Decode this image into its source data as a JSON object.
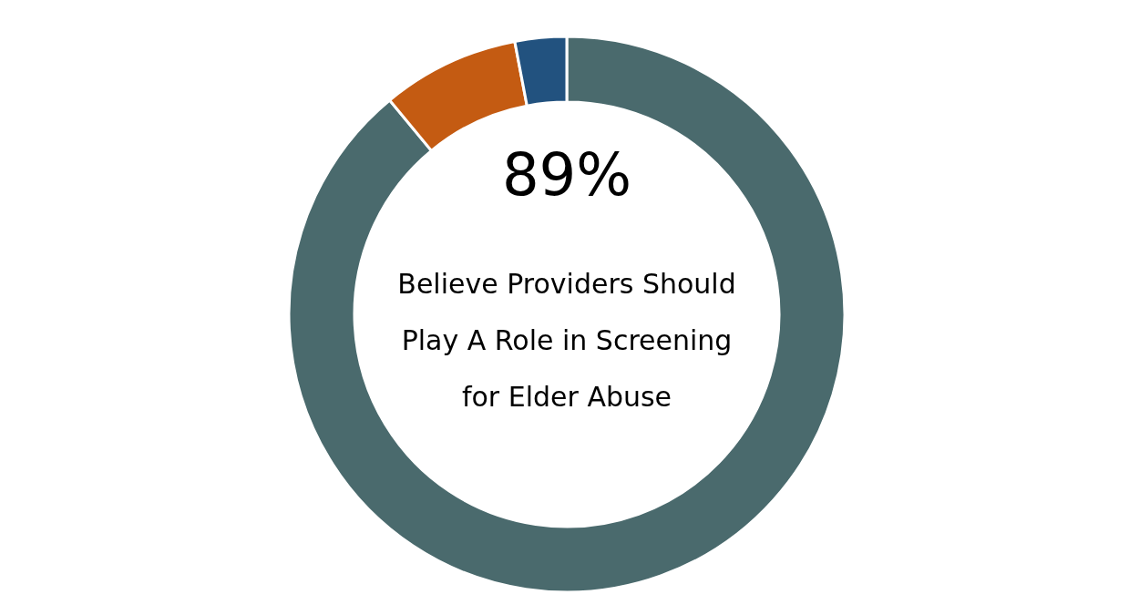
{
  "chart_data": {
    "type": "donut",
    "categories": [
      null,
      null,
      null
    ],
    "values": [
      89,
      8,
      3
    ],
    "colors": [
      "#4a6a6d",
      "#c45b12",
      "#22527f"
    ],
    "value_labels": [
      "89%",
      null,
      null
    ],
    "annotations": [
      "Believe Providers Should Play A Role in Screening for Elder Abuse"
    ]
  }
}
